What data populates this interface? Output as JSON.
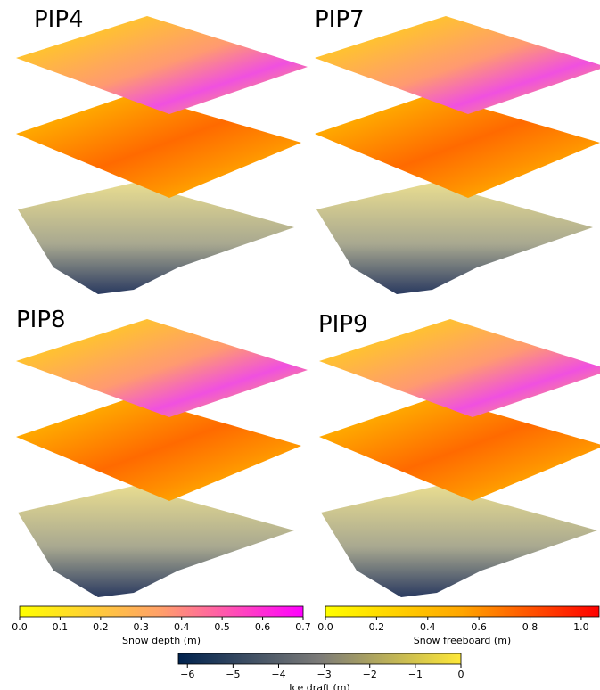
{
  "panels": [
    {
      "title": "PIP4"
    },
    {
      "title": "PIP7"
    },
    {
      "title": "PIP8"
    },
    {
      "title": "PIP9"
    }
  ],
  "colorbars": [
    {
      "label": "Snow depth (m)",
      "lim": [
        0,
        0.7
      ],
      "colors": [
        "#ffff00",
        "#ff9f6a",
        "#ff00ff"
      ],
      "ticks": [
        {
          "value": 0,
          "label": "0.0"
        },
        0.1,
        0.2,
        0.3,
        0.4,
        0.5,
        0.6,
        0.7
      ]
    },
    {
      "label": "Snow freeboard (m)",
      "lim": [
        0,
        1.07
      ],
      "colors": [
        "#ffff00",
        "#ffa500",
        "#ff0000"
      ],
      "ticks": [
        {
          "value": 0,
          "label": "0.0"
        },
        0.2,
        0.4,
        0.6,
        0.8,
        {
          "value": 1,
          "label": "1.0"
        }
      ]
    },
    {
      "label": "Ice draft (m)",
      "lim": [
        -6.2,
        0
      ],
      "colors": [
        "#00224e",
        "#7c7b78",
        "#fee838"
      ],
      "ticks": [
        {
          "value": -6,
          "label": "−6"
        },
        {
          "value": -5,
          "label": "−5"
        },
        {
          "value": -4,
          "label": "−4"
        },
        {
          "value": -3,
          "label": "−3"
        },
        {
          "value": -2,
          "label": "−2"
        },
        {
          "value": -1,
          "label": "−1"
        },
        0
      ]
    }
  ]
}
